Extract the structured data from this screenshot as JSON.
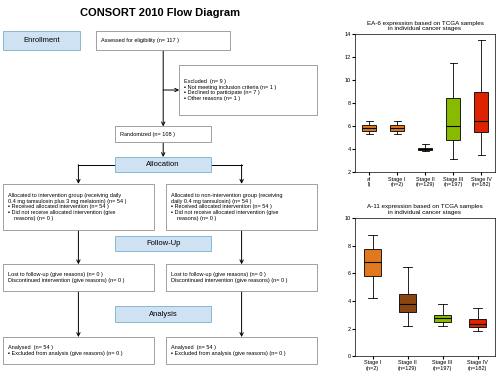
{
  "chart_data": [
    {
      "type": "flow",
      "title": "CONSORT 2010 Flow Diagram",
      "annotations": [
        "Enrollment",
        "Assessed for eligibility (n= 117 )",
        "Excluded  (n= 9 )\n▪ Not meeting inclusion criteria (n= 1 )\n▪ Declined to participate (n= 7 )\n▪ Other reasons (n= 1 )",
        "Randomized (n= 108 )",
        "Allocation",
        "Allocated to intervention group (receiving daily\n0.4 mg tamsulosin plus 3 mg melatonin) (n= 54 )\n▪ Received allocated intervention (n= 54 )\n▪ Did not receive allocated intervention (give\n    reasons) (n= 0 )",
        "Allocated to non-intervention group (receiving\ndaily 0.4 mg tamsulosin) (n= 54 )\n▪ Received allocated intervention (n= 54 )\n▪ Did not receive allocated intervention (give\n    reasons) (n= 0 )",
        "Follow-Up",
        "Lost to follow-up (give reasons) (n= 0 )\nDiscontinued intervention (give reasons) (n= 0 )",
        "Lost to follow-up (give reasons) (n= 0 )\nDiscontinued intervention (give reasons) (n= 0 )",
        "Analysis",
        "Analysed  (n= 54 )\n▪ Excluded from analysis (give reasons) (n= 0 )",
        "Analysed  (n= 54 )\n▪ Excluded from analysis (give reasons) (n= 0 )"
      ]
    },
    {
      "type": "box",
      "title": "EA-6 expression based on TCGA samples\nin individual cancer stages",
      "categories": [
        "al\nI)",
        "Stage I\n(n=2)",
        "Stage II\n(n=129)",
        "Stage III\n(n=197)",
        "Stage IV\n(n=182)"
      ],
      "colors": [
        "#e07820",
        "#e07820",
        "#c8960c",
        "#88bb00",
        "#dd2200"
      ],
      "values": [
        [
          5.3,
          5.6,
          5.85,
          6.1,
          6.5
        ],
        [
          5.3,
          5.6,
          5.85,
          6.1,
          6.5
        ],
        [
          3.85,
          3.95,
          4.05,
          4.15,
          4.5
        ],
        [
          3.2,
          4.8,
          6.0,
          8.5,
          11.5
        ],
        [
          3.5,
          5.5,
          6.5,
          9.0,
          13.5
        ]
      ],
      "ylim": [
        2,
        14
      ],
      "yticks": [
        2,
        4,
        6,
        8,
        10,
        12,
        14
      ]
    },
    {
      "type": "box",
      "title": "A-11 expression based on TCGA samples\nin individual cancer stages",
      "categories": [
        "Stage I\n(n=2)",
        "Stage II\n(n=129)",
        "Stage III\n(n=197)",
        "Stage IV\n(n=182)"
      ],
      "colors": [
        "#e07820",
        "#8B4513",
        "#88bb00",
        "#dd2200"
      ],
      "values": [
        [
          4.2,
          5.8,
          6.8,
          7.8,
          8.8
        ],
        [
          2.2,
          3.2,
          3.8,
          4.5,
          6.5
        ],
        [
          2.2,
          2.5,
          2.75,
          3.0,
          3.8
        ],
        [
          1.8,
          2.1,
          2.3,
          2.7,
          3.5
        ]
      ],
      "ylim": [
        0,
        10
      ],
      "yticks": [
        0,
        2,
        4,
        6,
        8,
        10
      ]
    }
  ]
}
